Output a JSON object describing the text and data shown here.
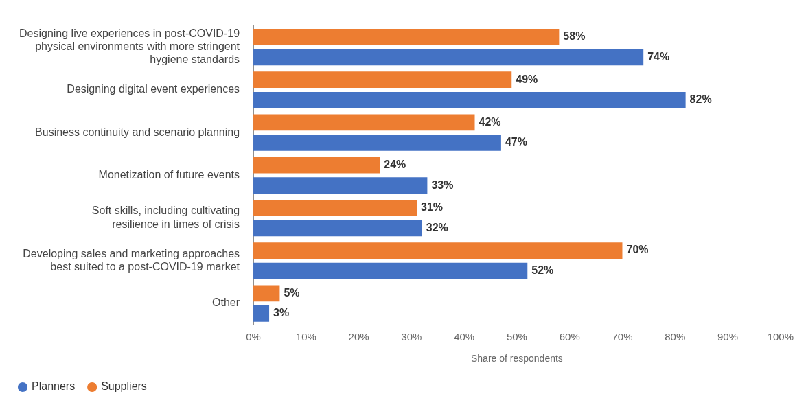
{
  "chart_data": {
    "type": "bar",
    "orientation": "horizontal",
    "xlabel": "Share of respondents",
    "categories": [
      "Designing live experiences in post-COVID-19 physical environments with more stringent hygiene standards",
      "Designing digital event experiences",
      "Business continuity and scenario planning",
      "Monetization of future events",
      "Soft skills, including cultivating resilience in times of crisis",
      "Developing sales and marketing approaches best suited to a post-COVID-19 market",
      "Other"
    ],
    "series": [
      {
        "name": "Suppliers",
        "color": "#ed7d31",
        "values": [
          58,
          49,
          42,
          24,
          31,
          70,
          5
        ],
        "value_labels": [
          "58%",
          "49%",
          "42%",
          "24%",
          "31%",
          "70%",
          "5%"
        ]
      },
      {
        "name": "Planners",
        "color": "#4472c4",
        "values": [
          74,
          82,
          47,
          33,
          32,
          52,
          3
        ],
        "value_labels": [
          "74%",
          "82%",
          "47%",
          "33%",
          "32%",
          "52%",
          "3%"
        ]
      }
    ],
    "xlim": [
      0,
      100
    ],
    "xticks": [
      {
        "value": 0,
        "label": "0%"
      },
      {
        "value": 10,
        "label": "10%"
      },
      {
        "value": 20,
        "label": "20%"
      },
      {
        "value": 30,
        "label": "30%"
      },
      {
        "value": 40,
        "label": "40%"
      },
      {
        "value": 50,
        "label": "50%"
      },
      {
        "value": 60,
        "label": "60%"
      },
      {
        "value": 70,
        "label": "70%"
      },
      {
        "value": 80,
        "label": "80%"
      },
      {
        "value": 90,
        "label": "90%"
      },
      {
        "value": 100,
        "label": "100%"
      }
    ],
    "grid": false,
    "legend": "bottom left"
  }
}
